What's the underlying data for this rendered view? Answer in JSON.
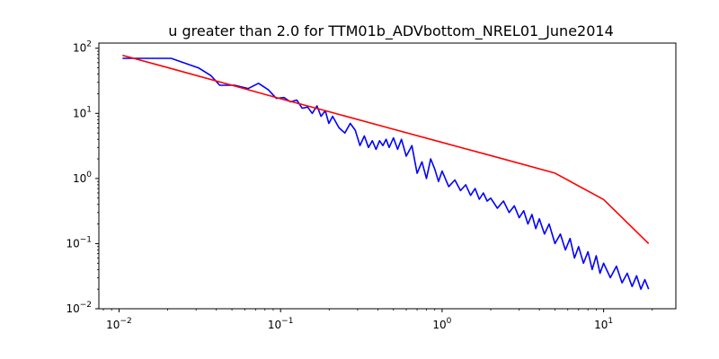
{
  "chart_data": {
    "type": "line",
    "title": "u greater than 2.0  for TTM01b_ADVbottom_NREL01_June2014",
    "xlabel": "",
    "ylabel": "",
    "xscale": "log",
    "yscale": "log",
    "xlim": [
      0.0075,
      28
    ],
    "ylim": [
      0.01,
      120
    ],
    "grid": false,
    "x_ticks": [
      {
        "value": 0.01,
        "base": "10",
        "exp": "−2"
      },
      {
        "value": 0.1,
        "base": "10",
        "exp": "−1"
      },
      {
        "value": 1,
        "base": "10",
        "exp": "0"
      },
      {
        "value": 10,
        "base": "10",
        "exp": "1"
      }
    ],
    "y_ticks": [
      {
        "value": 0.01,
        "base": "10",
        "exp": "−2"
      },
      {
        "value": 0.1,
        "base": "10",
        "exp": "−1"
      },
      {
        "value": 1,
        "base": "10",
        "exp": "0"
      },
      {
        "value": 10,
        "base": "10",
        "exp": "1"
      },
      {
        "value": 100,
        "base": "10",
        "exp": "2"
      }
    ],
    "series": [
      {
        "color": "#0000ff",
        "x": [
          0.0105,
          0.021,
          0.031,
          0.037,
          0.042,
          0.052,
          0.063,
          0.073,
          0.084,
          0.094,
          0.105,
          0.115,
          0.126,
          0.136,
          0.147,
          0.157,
          0.168,
          0.178,
          0.189,
          0.199,
          0.21,
          0.23,
          0.25,
          0.27,
          0.29,
          0.31,
          0.33,
          0.35,
          0.37,
          0.39,
          0.41,
          0.43,
          0.45,
          0.47,
          0.5,
          0.53,
          0.56,
          0.6,
          0.65,
          0.7,
          0.75,
          0.8,
          0.85,
          0.9,
          0.95,
          1.0,
          1.1,
          1.2,
          1.3,
          1.4,
          1.5,
          1.6,
          1.7,
          1.8,
          1.9,
          2.0,
          2.2,
          2.4,
          2.6,
          2.8,
          3.0,
          3.2,
          3.4,
          3.6,
          3.8,
          4.0,
          4.3,
          4.6,
          5.0,
          5.4,
          5.8,
          6.2,
          6.6,
          7.0,
          7.5,
          8.0,
          8.5,
          9.0,
          9.5,
          10.0,
          11.0,
          12.0,
          13.0,
          14.0,
          15.0,
          16.0,
          17.0,
          18.0,
          19.0
        ],
        "y": [
          70,
          70,
          50,
          38,
          27,
          27,
          24,
          29,
          23,
          17,
          17.5,
          15,
          16,
          12,
          12.5,
          10,
          13,
          9,
          11,
          7,
          9,
          6,
          5,
          7,
          5.5,
          3.2,
          4.5,
          3.0,
          3.8,
          2.8,
          3.8,
          3.2,
          4.0,
          3.0,
          4.2,
          2.8,
          4.0,
          2.2,
          3.2,
          1.2,
          1.8,
          1.0,
          2.0,
          1.4,
          0.9,
          1.3,
          0.75,
          0.95,
          0.65,
          0.8,
          0.55,
          0.7,
          0.48,
          0.6,
          0.45,
          0.5,
          0.35,
          0.45,
          0.3,
          0.38,
          0.25,
          0.32,
          0.2,
          0.28,
          0.17,
          0.24,
          0.14,
          0.2,
          0.1,
          0.14,
          0.08,
          0.12,
          0.06,
          0.09,
          0.05,
          0.075,
          0.04,
          0.065,
          0.035,
          0.05,
          0.03,
          0.045,
          0.025,
          0.035,
          0.022,
          0.032,
          0.02,
          0.028,
          0.02
        ]
      },
      {
        "color": "#ff0000",
        "x": [
          0.0105,
          0.02,
          0.05,
          0.1,
          0.2,
          0.5,
          1.0,
          2.0,
          5.0,
          10.0,
          19.0
        ],
        "y": [
          78,
          50.5,
          27.0,
          16.8,
          10.6,
          5.7,
          3.58,
          2.25,
          1.21,
          0.475,
          0.1
        ]
      }
    ]
  }
}
